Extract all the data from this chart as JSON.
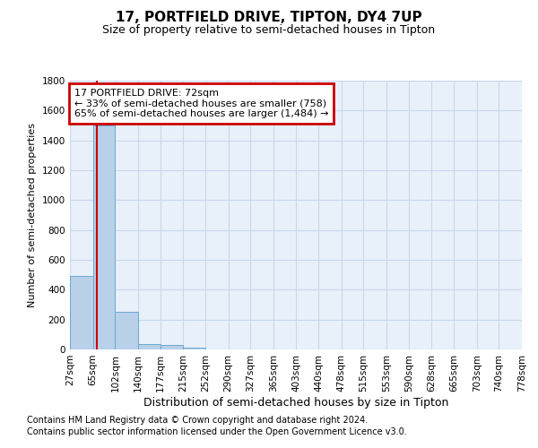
{
  "title": "17, PORTFIELD DRIVE, TIPTON, DY4 7UP",
  "subtitle": "Size of property relative to semi-detached houses in Tipton",
  "xlabel": "Distribution of semi-detached houses by size in Tipton",
  "ylabel": "Number of semi-detached properties",
  "footnote1": "Contains HM Land Registry data © Crown copyright and database right 2024.",
  "footnote2": "Contains public sector information licensed under the Open Government Licence v3.0.",
  "annotation_title": "17 PORTFIELD DRIVE: 72sqm",
  "annotation_line1": "← 33% of semi-detached houses are smaller (758)",
  "annotation_line2": "65% of semi-detached houses are larger (1,484) →",
  "bar_edges": [
    27,
    65,
    102,
    140,
    177,
    215,
    252,
    290,
    327,
    365,
    403,
    440,
    478,
    515,
    553,
    590,
    628,
    665,
    703,
    740,
    778
  ],
  "bar_heights": [
    490,
    1500,
    250,
    35,
    30,
    10,
    0,
    0,
    0,
    0,
    0,
    0,
    0,
    0,
    0,
    0,
    0,
    0,
    0,
    0
  ],
  "bar_color": "#b8d0e8",
  "bar_edge_color": "#6aaad4",
  "property_line_x": 72,
  "property_line_color": "#cc0000",
  "annotation_box_color": "#cc0000",
  "grid_color": "#c8d8ec",
  "background_color": "#e8f0fa",
  "ylim": [
    0,
    1800
  ],
  "yticks": [
    0,
    200,
    400,
    600,
    800,
    1000,
    1200,
    1400,
    1600,
    1800
  ],
  "title_fontsize": 11,
  "subtitle_fontsize": 9,
  "xlabel_fontsize": 9,
  "ylabel_fontsize": 8,
  "tick_fontsize": 7.5,
  "footnote_fontsize": 7,
  "annotation_fontsize": 8
}
